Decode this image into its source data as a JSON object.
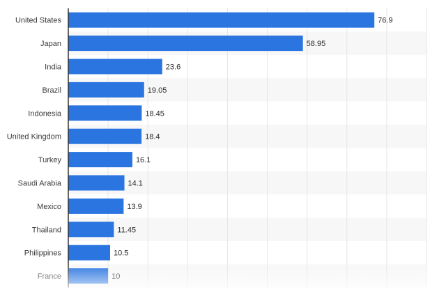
{
  "chart_data": {
    "type": "bar",
    "orientation": "horizontal",
    "categories": [
      "United States",
      "Japan",
      "India",
      "Brazil",
      "Indonesia",
      "United Kingdom",
      "Turkey",
      "Saudi Arabia",
      "Mexico",
      "Thailand",
      "Philippines",
      "France"
    ],
    "values": [
      76.9,
      58.95,
      23.6,
      19.05,
      18.45,
      18.4,
      16.1,
      14.1,
      13.9,
      11.45,
      10.5,
      10
    ],
    "value_labels": [
      "76.9",
      "58.95",
      "23.6",
      "19.05",
      "18.45",
      "18.4",
      "16.1",
      "14.1",
      "13.9",
      "11.45",
      "10.5",
      "10"
    ],
    "title": "",
    "xlabel": "",
    "ylabel": "",
    "xlim": [
      0,
      90
    ],
    "grid": true,
    "legend": "none",
    "bar_color": "#2a75e0",
    "stripe_color": "#f7f7f7",
    "grid_color": "#e6e6e6",
    "axis_color": "#333333"
  }
}
